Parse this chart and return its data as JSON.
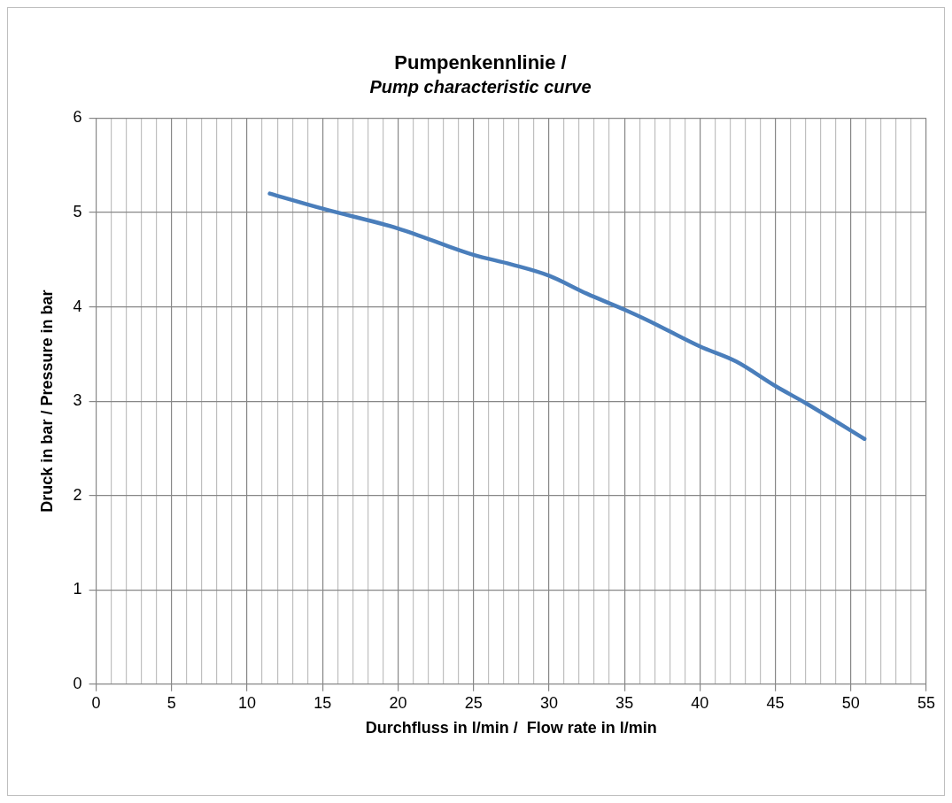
{
  "chart_data": {
    "type": "line",
    "title": "Pumpenkennlinie /",
    "subtitle": "Pump characteristic curve",
    "xlabel": "Durchfluss in l/min /  Flow rate in l/min",
    "ylabel": "Druck in bar / Pressure in bar",
    "series": [
      {
        "color": "#4a7ebb",
        "x": [
          11.5,
          15,
          20,
          25,
          27.5,
          30,
          32.5,
          35,
          36.5,
          40,
          42.4,
          45,
          47,
          50.9
        ],
        "values": [
          5.2,
          5.04,
          4.83,
          4.55,
          4.45,
          4.33,
          4.14,
          3.97,
          3.86,
          3.58,
          3.42,
          3.16,
          2.98,
          2.6
        ]
      }
    ],
    "xlim": [
      0,
      55
    ],
    "xticks": [
      0,
      {
        "value": 1,
        "label": null
      },
      {
        "value": 2,
        "label": null
      },
      {
        "value": 3,
        "label": null
      },
      {
        "value": 4,
        "label": null
      },
      5,
      {
        "value": 6,
        "label": null
      },
      {
        "value": 7,
        "label": null
      },
      {
        "value": 8,
        "label": null
      },
      {
        "value": 9,
        "label": null
      },
      10,
      {
        "value": 11,
        "label": null
      },
      {
        "value": 12,
        "label": null
      },
      {
        "value": 13,
        "label": null
      },
      {
        "value": 14,
        "label": null
      },
      15,
      {
        "value": 16,
        "label": null
      },
      {
        "value": 17,
        "label": null
      },
      {
        "value": 18,
        "label": null
      },
      {
        "value": 19,
        "label": null
      },
      20,
      {
        "value": 21,
        "label": null
      },
      {
        "value": 22,
        "label": null
      },
      {
        "value": 23,
        "label": null
      },
      {
        "value": 24,
        "label": null
      },
      25,
      {
        "value": 26,
        "label": null
      },
      {
        "value": 27,
        "label": null
      },
      {
        "value": 28,
        "label": null
      },
      {
        "value": 29,
        "label": null
      },
      30,
      {
        "value": 31,
        "label": null
      },
      {
        "value": 32,
        "label": null
      },
      {
        "value": 33,
        "label": null
      },
      {
        "value": 34,
        "label": null
      },
      35,
      {
        "value": 36,
        "label": null
      },
      {
        "value": 37,
        "label": null
      },
      {
        "value": 38,
        "label": null
      },
      {
        "value": 39,
        "label": null
      },
      40,
      {
        "value": 41,
        "label": null
      },
      {
        "value": 42,
        "label": null
      },
      {
        "value": 43,
        "label": null
      },
      {
        "value": 44,
        "label": null
      },
      45,
      {
        "value": 46,
        "label": null
      },
      {
        "value": 47,
        "label": null
      },
      {
        "value": 48,
        "label": null
      },
      {
        "value": 49,
        "label": null
      },
      50,
      {
        "value": 51,
        "label": null
      },
      {
        "value": 52,
        "label": null
      },
      {
        "value": 53,
        "label": null
      },
      {
        "value": 54,
        "label": null
      },
      55
    ],
    "ylim": [
      0,
      6
    ],
    "yticks": [
      0,
      1,
      2,
      3,
      4,
      5,
      6
    ],
    "grid": true,
    "legend": false,
    "marker": "none",
    "line_style": "solid"
  }
}
